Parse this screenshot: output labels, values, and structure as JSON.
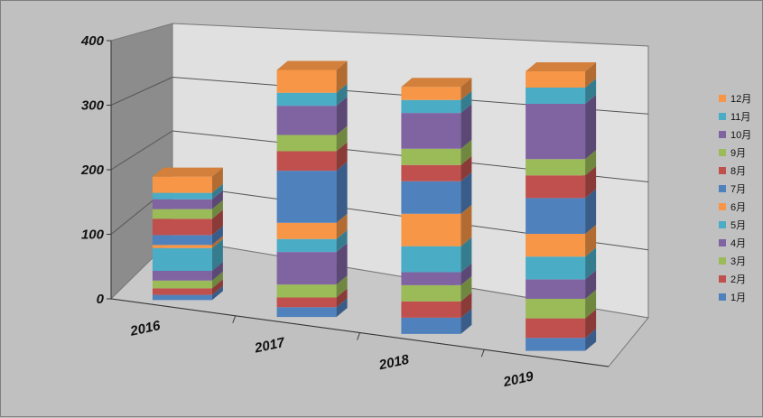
{
  "chart_data": {
    "type": "bar",
    "stacked": true,
    "three_d": true,
    "categories": [
      "2016",
      "2017",
      "2018",
      "2019"
    ],
    "ylim": [
      0,
      400
    ],
    "yticks": [
      "0",
      "100",
      "200",
      "300",
      "400"
    ],
    "grid": true,
    "legend_position": "right",
    "series": [
      {
        "name": "1月",
        "color": "#4F81BD",
        "values": [
          8,
          15,
          25,
          20
        ]
      },
      {
        "name": "2月",
        "color": "#C0504D",
        "values": [
          10,
          15,
          25,
          30
        ]
      },
      {
        "name": "3月",
        "color": "#9BBB59",
        "values": [
          12,
          20,
          25,
          30
        ]
      },
      {
        "name": "4月",
        "color": "#8064A2",
        "values": [
          15,
          50,
          20,
          30
        ]
      },
      {
        "name": "5月",
        "color": "#4BACC6",
        "values": [
          35,
          20,
          40,
          35
        ]
      },
      {
        "name": "6月",
        "color": "#F79646",
        "values": [
          5,
          25,
          50,
          35
        ]
      },
      {
        "name": "7月",
        "color": "#4F81BD",
        "values": [
          15,
          80,
          50,
          55
        ]
      },
      {
        "name": "8月",
        "color": "#C0504D",
        "values": [
          25,
          30,
          25,
          35
        ]
      },
      {
        "name": "9月",
        "color": "#9BBB59",
        "values": [
          15,
          25,
          25,
          25
        ]
      },
      {
        "name": "10月",
        "color": "#8064A2",
        "values": [
          15,
          45,
          55,
          85
        ]
      },
      {
        "name": "11月",
        "color": "#4BACC6",
        "values": [
          10,
          20,
          20,
          25
        ]
      },
      {
        "name": "12月",
        "color": "#F79646",
        "values": [
          25,
          35,
          20,
          25
        ]
      }
    ]
  }
}
